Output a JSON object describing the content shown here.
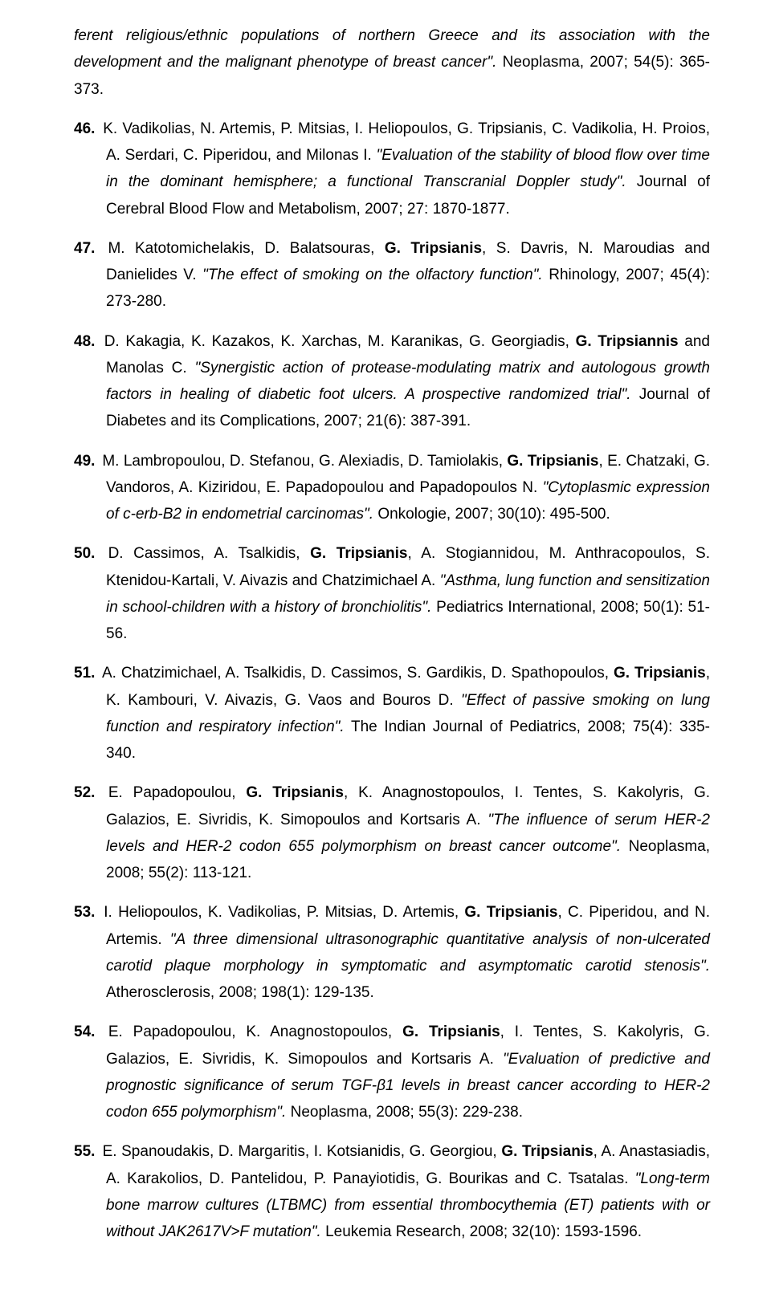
{
  "colors": {
    "text": "#000000",
    "background": "#ffffff"
  },
  "typography": {
    "font_family": "Comic Sans MS",
    "font_size_pt": 14,
    "line_height": 1.75,
    "align": "justify"
  },
  "continuation": {
    "pre_title": "ferent religious/ethnic populations of northern Greece and its association with the development and the malignant phenotype of breast cancer\".",
    "journal": " Neoplasma, 2007; 54(5): 365-373."
  },
  "references": [
    {
      "n": "46.",
      "authors": "K. Vadikolias, N. Artemis, P. Mitsias, I. Heliopoulos, G. Tripsianis, C. Vadikolia, H. Proios, A. Serdari, C. Piperidou, and Milonas I. ",
      "title": "\"Evaluation of the stability of blood flow over time in the dominant hemisphere; a functional Transcranial Doppler study\".",
      "journal": " Journal of Cerebral Blood Flow and Metabolism, 2007; 27: 1870-1877."
    },
    {
      "n": "47.",
      "authors_pre": "M. Katotomichelakis, D. Balatsouras, ",
      "bold1": "G. Tripsianis",
      "authors_post": ", S. Davris, N. Maroudias and Danielides V. ",
      "title": "\"The effect of smoking on the olfactory function\".",
      "journal": " Rhinology, 2007; 45(4): 273-280."
    },
    {
      "n": "48.",
      "authors_pre": "D. Kakagia, K. Kazakos, K. Xarchas, M. Karanikas, G. Georgiadis, ",
      "bold1": "G. Tripsiannis",
      "authors_post": " and Manolas C. ",
      "title": "\"Synergistic action of protease-modulating matrix and autologous growth factors in healing of diabetic foot ulcers. A prospective randomized trial\".",
      "journal": " Journal of Diabetes and its Complications, 2007; 21(6): 387-391."
    },
    {
      "n": "49.",
      "authors_pre": "M. Lambropoulou, D. Stefanou, G. Alexiadis, D. Tamiolakis, ",
      "bold1": "G. Tripsianis",
      "authors_post": ", E. Chatzaki, G. Vandoros, A. Kiziridou, E. Papadopoulou and Papadopoulos N. ",
      "title": "\"Cytoplasmic expression of c-erb-B2 in endometrial carcinomas\".",
      "journal": " Onkologie, 2007; 30(10): 495-500."
    },
    {
      "n": "50.",
      "authors_pre": "D. Cassimos, A. Tsalkidis, ",
      "bold1": "G. Tripsianis",
      "authors_post": ", A. Stogiannidou, M. Anthracopoulos, S. Ktenidou-Kartali, V. Aivazis and Chatzimichael A. ",
      "title": "\"Asthma, lung function and sensitization in school-children with a history of bronchiolitis\".",
      "journal": " Pediatrics International, 2008; 50(1): 51-56."
    },
    {
      "n": "51.",
      "authors_pre": "A. Chatzimichael, A. Tsalkidis, D. Cassimos, S. Gardikis, D. Spathopoulos, ",
      "bold1": "G. Tripsianis",
      "authors_post": ", K. Kambouri, V. Aivazis, G. Vaos and Bouros D. ",
      "title": "\"Effect of passive smoking on lung function and respiratory infection\".",
      "journal": " The Indian Journal of Pediatrics, 2008; 75(4): 335-340."
    },
    {
      "n": "52.",
      "authors_pre": "E. Papadopoulou, ",
      "bold1": "G. Tripsianis",
      "authors_post": ", K. Anagnostopoulos, I. Tentes, S. Kakolyris, G. Galazios, E. Sivridis, K. Simopoulos and Kortsaris A. ",
      "title": "\"The influence of serum HER-2 levels and HER-2 codon 655 polymorphism on breast cancer outcome\".",
      "journal": " Neoplasma, 2008; 55(2): 113-121."
    },
    {
      "n": "53.",
      "authors_pre": "I. Heliopoulos, K. Vadikolias, P. Mitsias, D. Artemis, ",
      "bold1": "G. Tripsianis",
      "authors_post": ", C. Piperidou, and N. Artemis. ",
      "title": "\"A three dimensional ultrasonographic quantitative analysis of non-ulcerated carotid plaque morphology in symptomatic and asymptomatic carotid stenosis\".",
      "journal": " Atherosclerosis, 2008; 198(1): 129-135."
    },
    {
      "n": "54.",
      "authors_pre": "E. Papadopoulou, K. Anagnostopoulos, ",
      "bold1": "G. Tripsianis",
      "authors_post": ", I. Tentes, S. Kakolyris, G. Galazios, E. Sivridis, K. Simopoulos and Kortsaris A. ",
      "title": "\"Evaluation of predictive and prognostic significance of serum TGF-β1 levels in breast cancer according to HER-2 codon 655 polymorphism\".",
      "journal": " Neoplasma, 2008; 55(3): 229-238."
    },
    {
      "n": "55.",
      "authors_pre": "E. Spanoudakis, D. Margaritis, I. Kotsianidis, G. Georgiou, ",
      "bold1": "G. Tripsianis",
      "authors_post": ", A. Anastasiadis, A. Karakolios, D. Pantelidou, P. Panayiotidis, G. Bourikas and C. Tsatalas. ",
      "title": "\"Long-term bone marrow cultures (LTBMC) from essential thrombocythemia (ET) patients with or without JAK2617V>F mutation\".",
      "journal": " Leukemia Research, 2008; 32(10): 1593-1596."
    }
  ]
}
